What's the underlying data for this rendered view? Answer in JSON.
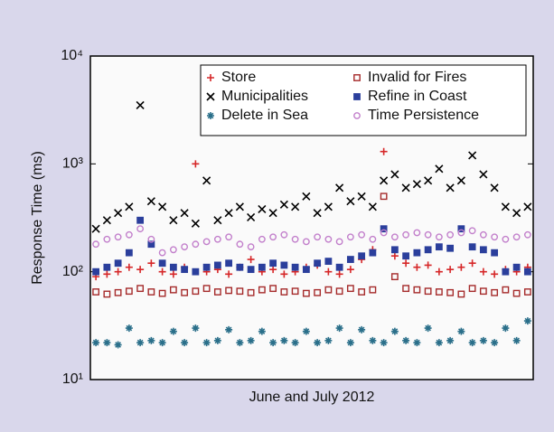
{
  "chart_data": {
    "type": "scatter",
    "xlabel": "June and July 2012",
    "ylabel": "Response Time (ms)",
    "log_scale": true,
    "legend": "upper right",
    "ylim": [
      10,
      10000
    ],
    "yticks": [
      {
        "value": 10,
        "label": "10¹"
      },
      {
        "value": 100,
        "label": "10²"
      },
      {
        "value": 1000,
        "label": "10³"
      },
      {
        "value": 10000,
        "label": "10⁴"
      }
    ],
    "series": [
      {
        "name": "Store",
        "color": "#d62728",
        "marker": "plus",
        "values": [
          90,
          95,
          100,
          110,
          105,
          120,
          100,
          95,
          110,
          1000,
          100,
          105,
          95,
          110,
          130,
          100,
          105,
          95,
          100,
          110,
          115,
          100,
          95,
          105,
          130,
          160,
          1300,
          140,
          120,
          110,
          115,
          100,
          105,
          110,
          120,
          100,
          95,
          105,
          100,
          110
        ]
      },
      {
        "name": "Municipalities",
        "color": "#000000",
        "marker": "x",
        "values": [
          250,
          300,
          350,
          400,
          3500,
          450,
          400,
          300,
          350,
          280,
          700,
          300,
          350,
          400,
          320,
          380,
          350,
          420,
          400,
          500,
          350,
          400,
          600,
          450,
          500,
          400,
          700,
          800,
          600,
          650,
          700,
          900,
          600,
          700,
          1200,
          800,
          600,
          400,
          350,
          400
        ]
      },
      {
        "name": "Delete in Sea",
        "color": "#2a6f8a",
        "marker": "star",
        "values": [
          22,
          22,
          21,
          30,
          22,
          23,
          22,
          28,
          22,
          30,
          22,
          23,
          29,
          22,
          23,
          28,
          22,
          23,
          22,
          28,
          22,
          23,
          30,
          22,
          29,
          23,
          22,
          28,
          23,
          22,
          30,
          22,
          23,
          28,
          22,
          23,
          22,
          30,
          23,
          35
        ]
      },
      {
        "name": "Invalid for Fires",
        "color": "#a52a2a",
        "marker": "square-open",
        "values": [
          65,
          62,
          64,
          66,
          70,
          65,
          63,
          68,
          64,
          66,
          70,
          65,
          67,
          66,
          64,
          68,
          70,
          65,
          66,
          63,
          64,
          68,
          66,
          70,
          65,
          68,
          500,
          90,
          70,
          68,
          66,
          65,
          64,
          62,
          70,
          66,
          64,
          68,
          63,
          65
        ]
      },
      {
        "name": "Refine in Coast",
        "color": "#2b3f9c",
        "marker": "square",
        "values": [
          100,
          110,
          120,
          150,
          300,
          180,
          120,
          110,
          105,
          100,
          110,
          115,
          120,
          110,
          105,
          110,
          120,
          115,
          110,
          105,
          120,
          125,
          110,
          130,
          140,
          150,
          250,
          160,
          140,
          150,
          160,
          170,
          165,
          250,
          170,
          160,
          150,
          100,
          110,
          100
        ]
      },
      {
        "name": "Time Persistence",
        "color": "#c27fcb",
        "marker": "circle-open",
        "values": [
          180,
          200,
          210,
          220,
          250,
          200,
          150,
          160,
          170,
          180,
          190,
          200,
          210,
          180,
          170,
          200,
          210,
          220,
          200,
          190,
          210,
          200,
          190,
          210,
          220,
          200,
          230,
          210,
          220,
          230,
          220,
          210,
          220,
          230,
          240,
          220,
          210,
          200,
          210,
          220
        ]
      }
    ]
  }
}
